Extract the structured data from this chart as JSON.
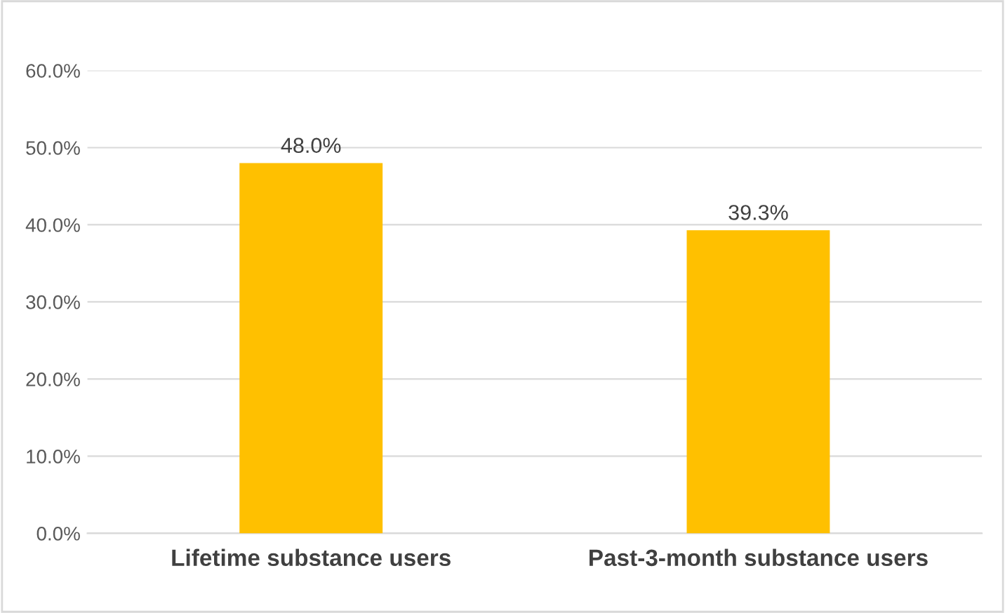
{
  "chart_data": {
    "type": "bar",
    "categories": [
      "Lifetime substance users",
      "Past-3-month substance users"
    ],
    "values": [
      48.0,
      39.3
    ],
    "value_labels": [
      "48.0%",
      "39.3%"
    ],
    "color": "#ffc000",
    "ylim": [
      0,
      60
    ],
    "yticks": [
      {
        "value": 0,
        "label": "0.0%"
      },
      {
        "value": 10,
        "label": "10.0%"
      },
      {
        "value": 20,
        "label": "20.0%"
      },
      {
        "value": 30,
        "label": "30.0%"
      },
      {
        "value": 40,
        "label": "40.0%"
      },
      {
        "value": 50,
        "label": "50.0%"
      },
      {
        "value": 60,
        "label": "60.0%"
      }
    ],
    "grid": "y"
  }
}
